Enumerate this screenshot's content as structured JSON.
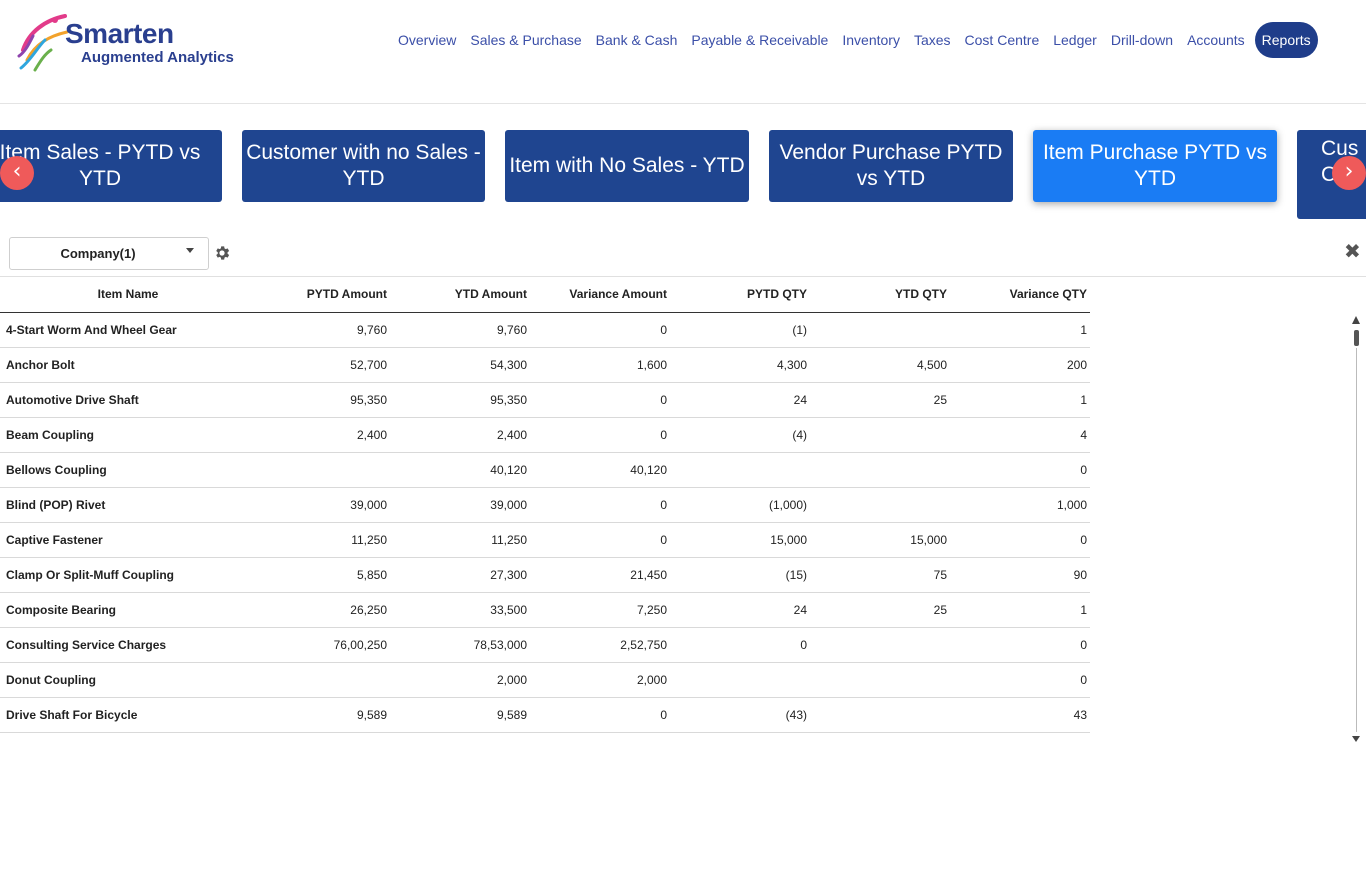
{
  "header": {
    "logo": {
      "brand": "Smarten",
      "tagline": "Augmented Analytics"
    },
    "nav": [
      "Overview",
      "Sales & Purchase",
      "Bank & Cash",
      "Payable & Receivable",
      "Inventory",
      "Taxes",
      "Cost Centre",
      "Ledger",
      "Drill-down",
      "Accounts",
      "Reports"
    ],
    "active_nav": "Reports"
  },
  "carousel": {
    "cards": [
      "Item Sales - PYTD vs YTD",
      "Customer with no Sales - YTD",
      "Item with No Sales - YTD",
      "Vendor Purchase PYTD vs YTD",
      "Item Purchase PYTD vs YTD",
      "Cus\nC"
    ],
    "active_card": "Item Purchase PYTD vs YTD",
    "prev_icon": "‹",
    "next_icon": "›"
  },
  "filter": {
    "company_label": "Company(1)",
    "close_icon": "✖"
  },
  "table": {
    "columns": [
      "Item Name",
      "PYTD Amount",
      "YTD Amount",
      "Variance Amount",
      "PYTD QTY",
      "YTD QTY",
      "Variance QTY"
    ],
    "rows": [
      [
        "4-Start Worm And Wheel Gear",
        "9,760",
        "9,760",
        "0",
        "(1)",
        "",
        "1"
      ],
      [
        "Anchor Bolt",
        "52,700",
        "54,300",
        "1,600",
        "4,300",
        "4,500",
        "200"
      ],
      [
        "Automotive Drive Shaft",
        "95,350",
        "95,350",
        "0",
        "24",
        "25",
        "1"
      ],
      [
        "Beam Coupling",
        "2,400",
        "2,400",
        "0",
        "(4)",
        "",
        "4"
      ],
      [
        "Bellows Coupling",
        "",
        "40,120",
        "40,120",
        "",
        "",
        "0"
      ],
      [
        "Blind (POP) Rivet",
        "39,000",
        "39,000",
        "0",
        "(1,000)",
        "",
        "1,000"
      ],
      [
        "Captive Fastener",
        "11,250",
        "11,250",
        "0",
        "15,000",
        "15,000",
        "0"
      ],
      [
        "Clamp Or Split-Muff Coupling",
        "5,850",
        "27,300",
        "21,450",
        "(15)",
        "75",
        "90"
      ],
      [
        "Composite Bearing",
        "26,250",
        "33,500",
        "7,250",
        "24",
        "25",
        "1"
      ],
      [
        "Consulting Service Charges",
        "76,00,250",
        "78,53,000",
        "2,52,750",
        "0",
        "",
        "0"
      ],
      [
        "Donut Coupling",
        "",
        "2,000",
        "2,000",
        "",
        "",
        "0"
      ],
      [
        "Drive Shaft For Bicycle",
        "9,589",
        "9,589",
        "0",
        "(43)",
        "",
        "43"
      ]
    ]
  }
}
